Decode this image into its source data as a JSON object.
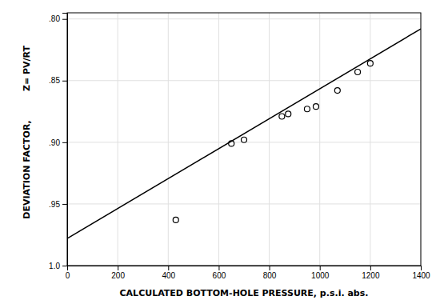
{
  "chart_data": {
    "type": "scatter",
    "xlabel": "CALCULATED BOTTOM-HOLE PRESSURE, p.s.i. abs.",
    "ylabel": [
      "DEVIATION FACTOR,",
      "Z= PV/RT"
    ],
    "xlim": [
      0,
      1400
    ],
    "ylim": [
      1.0,
      0.795
    ],
    "xticks": [
      0,
      200,
      400,
      600,
      800,
      1000,
      1200,
      1400
    ],
    "yticks": [
      {
        "value": 1.0,
        "label": "1.0"
      },
      {
        "value": 0.95,
        "label": ".95"
      },
      {
        "value": 0.9,
        "label": ".90"
      },
      {
        "value": 0.85,
        "label": ".85"
      },
      {
        "value": 0.8,
        "label": ".80"
      }
    ],
    "grid": true,
    "series": [
      {
        "type": "line",
        "color": "#000000",
        "line_style": "solid",
        "x": [
          0,
          1400
        ],
        "values": [
          0.978,
          0.808
        ]
      },
      {
        "type": "scatter",
        "color": "#000000",
        "marker": "open-circle",
        "x": [
          430,
          650,
          700,
          850,
          875,
          950,
          985,
          1070,
          1150,
          1200
        ],
        "values": [
          0.963,
          0.901,
          0.898,
          0.879,
          0.877,
          0.873,
          0.871,
          0.858,
          0.843,
          0.836
        ]
      }
    ]
  }
}
